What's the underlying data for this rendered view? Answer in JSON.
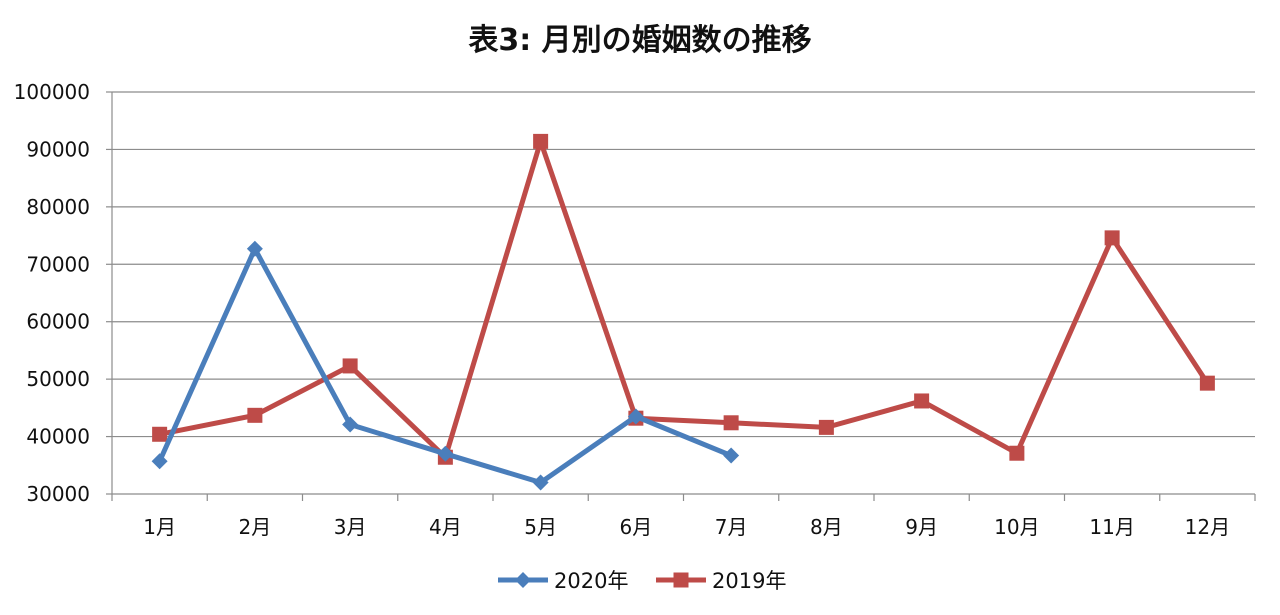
{
  "chart_data": {
    "type": "line",
    "title": "表3: 月別の婚姻数の推移",
    "xlabel": "",
    "ylabel": "",
    "categories": [
      "1月",
      "2月",
      "3月",
      "4月",
      "5月",
      "6月",
      "7月",
      "8月",
      "9月",
      "10月",
      "11月",
      "12月"
    ],
    "ylim": [
      30000,
      100000
    ],
    "yticks": [
      30000,
      40000,
      50000,
      60000,
      70000,
      80000,
      90000,
      100000
    ],
    "grid": true,
    "legend_position": "bottom",
    "series": [
      {
        "name": "2020年",
        "color": "#4a7ebb",
        "marker": "diamond",
        "values": [
          35700,
          72700,
          42100,
          37000,
          32000,
          43500,
          36700,
          null,
          null,
          null,
          null,
          null
        ]
      },
      {
        "name": "2019年",
        "color": "#be4b48",
        "marker": "square",
        "values": [
          40400,
          43700,
          52300,
          36400,
          91400,
          43200,
          42400,
          41600,
          46200,
          37100,
          74600,
          49300
        ]
      }
    ]
  }
}
